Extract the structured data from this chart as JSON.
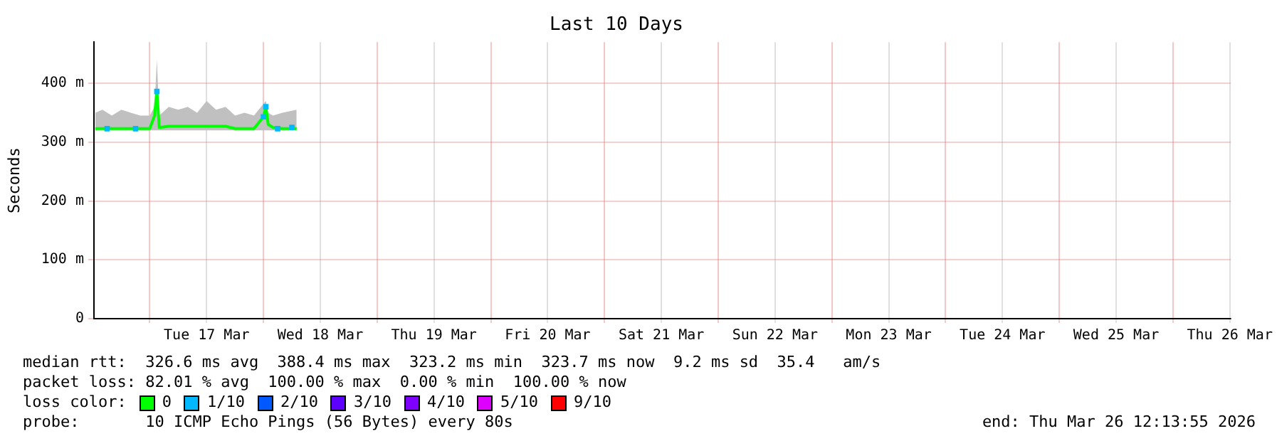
{
  "chart_data": {
    "type": "line",
    "title": "Last 10 Days",
    "ylabel": "Seconds",
    "x": [
      "2026-03-16T12:30",
      "2026-03-16T14:00",
      "2026-03-16T16:00",
      "2026-03-16T18:00",
      "2026-03-16T20:00",
      "2026-03-16T22:00",
      "2026-03-17T00:00",
      "2026-03-17T01:00",
      "2026-03-17T01:30",
      "2026-03-17T02:00",
      "2026-03-17T04:00",
      "2026-03-17T06:00",
      "2026-03-17T08:00",
      "2026-03-17T10:00",
      "2026-03-17T12:00",
      "2026-03-17T14:00",
      "2026-03-17T16:00",
      "2026-03-17T18:00",
      "2026-03-17T20:00",
      "2026-03-17T22:00",
      "2026-03-18T00:00",
      "2026-03-18T00:30",
      "2026-03-18T01:00",
      "2026-03-18T02:00",
      "2026-03-18T04:00",
      "2026-03-18T07:00"
    ],
    "series": [
      {
        "name": "0",
        "color": "#00ff00",
        "values": [
          323,
          323,
          323,
          323,
          323,
          323,
          323,
          345,
          388,
          325,
          327,
          327,
          327,
          327,
          327,
          327,
          327,
          323,
          323,
          323,
          343,
          360,
          330,
          325,
          323,
          323
        ],
        "lower": [
          320,
          320,
          320,
          320,
          320,
          320,
          320,
          320,
          320,
          320,
          320,
          320,
          320,
          320,
          320,
          320,
          320,
          320,
          320,
          320,
          320,
          320,
          320,
          320,
          320,
          320
        ],
        "upper": [
          350,
          355,
          345,
          355,
          350,
          345,
          345,
          360,
          440,
          345,
          360,
          355,
          360,
          350,
          370,
          355,
          360,
          345,
          350,
          345,
          365,
          370,
          350,
          345,
          350,
          355
        ]
      },
      {
        "name": "1/10",
        "type": "scatter",
        "marker": "square",
        "color": "#00b8ff",
        "x": [
          "2026-03-16T15:00",
          "2026-03-16T21:00",
          "2026-03-17T01:30",
          "2026-03-18T00:00",
          "2026-03-18T00:30",
          "2026-03-18T03:00",
          "2026-03-18T06:00"
        ],
        "values": [
          323,
          323,
          386,
          343,
          360,
          323,
          325
        ]
      },
      {
        "name": "2/10",
        "type": "scatter",
        "marker": "square",
        "color": "#0059ff",
        "values": [
          null,
          null,
          null,
          null,
          null,
          null,
          null,
          null,
          null,
          null,
          null,
          null,
          null,
          null,
          null,
          null,
          null,
          null,
          null,
          null,
          null,
          null,
          null,
          null,
          null,
          null
        ]
      },
      {
        "name": "3/10",
        "type": "scatter",
        "marker": "square",
        "color": "#5e00ff",
        "values": [
          null,
          null,
          null,
          null,
          null,
          null,
          null,
          null,
          null,
          null,
          null,
          null,
          null,
          null,
          null,
          null,
          null,
          null,
          null,
          null,
          null,
          null,
          null,
          null,
          null,
          null
        ]
      },
      {
        "name": "4/10",
        "type": "scatter",
        "marker": "square",
        "color": "#7e00ff",
        "values": [
          null,
          null,
          null,
          null,
          null,
          null,
          null,
          null,
          null,
          null,
          null,
          null,
          null,
          null,
          null,
          null,
          null,
          null,
          null,
          null,
          null,
          null,
          null,
          null,
          null,
          null
        ]
      },
      {
        "name": "5/10",
        "type": "scatter",
        "marker": "square",
        "color": "#dd00ff",
        "values": [
          null,
          null,
          null,
          null,
          null,
          null,
          null,
          null,
          null,
          null,
          null,
          null,
          null,
          null,
          null,
          null,
          null,
          null,
          null,
          null,
          null,
          null,
          null,
          null,
          null,
          null
        ]
      },
      {
        "name": "9/10",
        "type": "scatter",
        "marker": "square",
        "color": "#ff0000",
        "values": [
          null,
          null,
          null,
          null,
          null,
          null,
          null,
          null,
          null,
          null,
          null,
          null,
          null,
          null,
          null,
          null,
          null,
          null,
          null,
          null,
          null,
          null,
          null,
          null,
          null,
          null
        ]
      }
    ],
    "marker": "none",
    "line_style": "solid",
    "legend": "bottom",
    "legend_title": "loss color:",
    "grid": true,
    "xlim": [
      "2026-03-16T12:13",
      "2026-03-26T12:13"
    ],
    "xticks": [
      {
        "value": "2026-03-17T00:00",
        "label": null
      },
      {
        "value": "2026-03-17T12:00",
        "label": "Tue 17 Mar"
      },
      {
        "value": "2026-03-18T00:00",
        "label": null
      },
      {
        "value": "2026-03-18T12:00",
        "label": "Wed 18 Mar"
      },
      {
        "value": "2026-03-19T00:00",
        "label": null
      },
      {
        "value": "2026-03-19T12:00",
        "label": "Thu 19 Mar"
      },
      {
        "value": "2026-03-20T00:00",
        "label": null
      },
      {
        "value": "2026-03-20T12:00",
        "label": "Fri 20 Mar"
      },
      {
        "value": "2026-03-21T00:00",
        "label": null
      },
      {
        "value": "2026-03-21T12:00",
        "label": "Sat 21 Mar"
      },
      {
        "value": "2026-03-22T00:00",
        "label": null
      },
      {
        "value": "2026-03-22T12:00",
        "label": "Sun 22 Mar"
      },
      {
        "value": "2026-03-23T00:00",
        "label": null
      },
      {
        "value": "2026-03-23T12:00",
        "label": "Mon 23 Mar"
      },
      {
        "value": "2026-03-24T00:00",
        "label": null
      },
      {
        "value": "2026-03-24T12:00",
        "label": "Tue 24 Mar"
      },
      {
        "value": "2026-03-25T00:00",
        "label": null
      },
      {
        "value": "2026-03-25T12:00",
        "label": "Wed 25 Mar"
      },
      {
        "value": "2026-03-26T00:00",
        "label": null
      },
      {
        "value": "2026-03-26T12:00",
        "label": "Thu 26 Mar"
      }
    ],
    "ylim": [
      0,
      470
    ],
    "yticks": [
      0,
      {
        "value": 100,
        "label": "100 m"
      },
      {
        "value": 200,
        "label": "200 m"
      },
      {
        "value": 300,
        "label": "300 m"
      },
      {
        "value": 400,
        "label": "400 m"
      }
    ],
    "annotations": [
      "median rtt:  326.6 ms avg  388.4 ms max  323.2 ms min  323.7 ms now  9.2 ms sd  35.4   am/s",
      "packet loss: 82.01 % avg  100.00 % max  0.00 % min  100.00 % now",
      "probe:       10 ICMP Echo Pings (56 Bytes) every 80s",
      "end: Thu Mar 26 12:13:55 2026"
    ]
  }
}
